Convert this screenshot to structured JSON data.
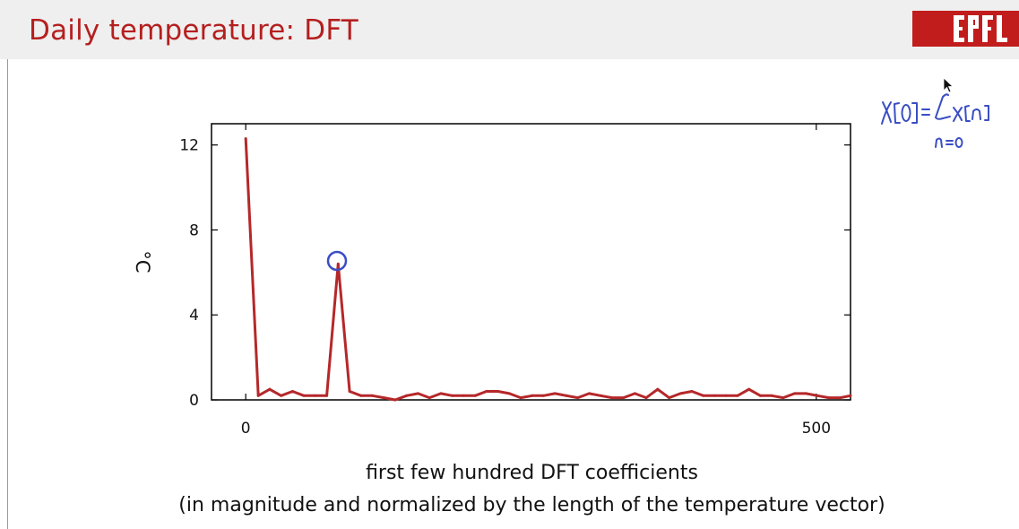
{
  "slide": {
    "title": "Daily temperature:  DFT",
    "logo_text": "EPFL",
    "accent_color": "#b51f1f"
  },
  "chart_data": {
    "type": "line",
    "title": "",
    "xlabel": "first few hundred DFT coefficients",
    "xlabel_note": "(in magnitude and normalized by the length of the temperature vector)",
    "ylabel": "°C",
    "xlim": [
      -30,
      530
    ],
    "ylim": [
      0,
      13
    ],
    "xticks": [
      0,
      500
    ],
    "yticks": [
      0,
      4,
      8,
      12
    ],
    "grid": false,
    "line_color": "#b5282a",
    "series": [
      {
        "x": [
          0,
          11,
          21,
          31,
          41,
          51,
          61,
          71,
          81,
          91,
          101,
          111,
          121,
          131,
          141,
          151,
          161,
          171,
          181,
          191,
          201,
          211,
          221,
          231,
          241,
          251,
          261,
          271,
          281,
          291,
          301,
          311,
          321,
          331,
          341,
          351,
          361,
          371,
          381,
          391,
          401,
          411,
          421,
          431,
          441,
          451,
          461,
          471,
          481,
          491,
          501,
          511,
          521,
          530
        ],
        "y": [
          12.3,
          0.2,
          0.5,
          0.2,
          0.4,
          0.2,
          0.2,
          0.2,
          6.4,
          0.4,
          0.2,
          0.2,
          0.1,
          0.0,
          0.2,
          0.3,
          0.1,
          0.3,
          0.2,
          0.2,
          0.2,
          0.4,
          0.4,
          0.3,
          0.1,
          0.2,
          0.2,
          0.3,
          0.2,
          0.1,
          0.3,
          0.2,
          0.1,
          0.1,
          0.3,
          0.1,
          0.5,
          0.1,
          0.3,
          0.4,
          0.2,
          0.2,
          0.2,
          0.2,
          0.5,
          0.2,
          0.2,
          0.1,
          0.3,
          0.3,
          0.2,
          0.1,
          0.1,
          0.2
        ]
      }
    ]
  },
  "annotation": {
    "handwritten_formula": "X[0] = Σ x[n]",
    "handwritten_subscript": "n=0",
    "ink_color": "#3a4ec4"
  }
}
